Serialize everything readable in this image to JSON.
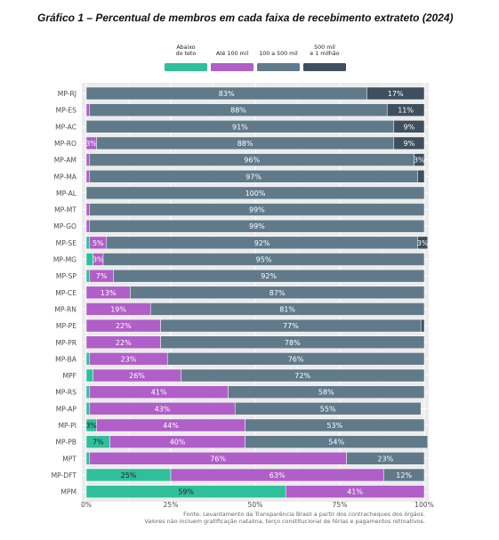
{
  "title": "Gráfico 1 – Percentual de membros em cada faixa de recebimento extrateto (2024)",
  "footnote": {
    "line1": "Fonte: Levantamento da Transparência Brasil a partir dos contracheques dos órgãos.",
    "line2": "Valores não incluem gratificação natalina, terço constitucional de férias e pagamentos retroativos."
  },
  "colors": {
    "Abaixo do teto": "#2fbf9b",
    "Até 100 mil": "#b05ec8",
    "100 a 500 mil": "#607a8a",
    "500 mil e 1 milhão": "#3f4f5e",
    "panel_background": "#ebebeb",
    "grid": "#ffffff"
  },
  "chart_data": {
    "type": "bar",
    "orientation": "horizontal",
    "stacked": true,
    "legend_position": "top",
    "xlim": [
      0,
      100
    ],
    "x_ticks": [
      "0%",
      "25%",
      "50%",
      "75%",
      "100%"
    ],
    "legend": [
      {
        "key": "Abaixo do teto",
        "lines": [
          "Abaixo",
          "do teto"
        ]
      },
      {
        "key": "Até 100 mil",
        "lines": [
          "Até 100 mil"
        ]
      },
      {
        "key": "100 a 500 mil",
        "lines": [
          "100 a 500 mil"
        ]
      },
      {
        "key": "500 mil e 1 milhão",
        "lines": [
          "500 mil",
          "e 1 milhão"
        ]
      }
    ],
    "categories": [
      "MP-RJ",
      "MP-ES",
      "MP-AC",
      "MP-RO",
      "MP-AM",
      "MP-MA",
      "MP-AL",
      "MP-MT",
      "MP-GO",
      "MP-SE",
      "MP-MG",
      "MP-SP",
      "MP-CE",
      "MP-RN",
      "MP-PE",
      "MP-PR",
      "MP-BA",
      "MPF",
      "MP-RS",
      "MP-AP",
      "MP-PI",
      "MP-PB",
      "MPT",
      "MP-DFT",
      "MPM"
    ],
    "series": [
      {
        "name": "Abaixo do teto",
        "values": [
          0,
          0,
          0,
          0,
          0,
          0,
          0,
          0,
          0,
          1,
          2,
          1,
          0,
          0,
          0,
          0,
          1,
          2,
          1,
          1,
          3,
          7,
          1,
          25,
          59
        ],
        "labels": [
          "",
          "",
          "",
          "",
          "",
          "",
          "",
          "",
          "",
          "",
          "",
          "",
          "",
          "",
          "",
          "",
          "",
          "",
          "",
          "",
          "3%",
          "7%",
          "",
          "25%",
          "59%"
        ]
      },
      {
        "name": "Até 100 mil",
        "values": [
          0,
          1,
          0,
          3,
          1,
          1,
          0,
          1,
          1,
          5,
          3,
          7,
          13,
          19,
          22,
          22,
          23,
          26,
          41,
          43,
          44,
          40,
          76,
          63,
          41
        ],
        "labels": [
          "",
          "",
          "",
          "3%",
          "",
          "",
          "",
          "",
          "",
          "5%",
          "3%",
          "7%",
          "13%",
          "19%",
          "22%",
          "22%",
          "23%",
          "26%",
          "41%",
          "43%",
          "44%",
          "40%",
          "76%",
          "63%",
          "41%"
        ]
      },
      {
        "name": "100 a 500 mil",
        "values": [
          83,
          88,
          91,
          88,
          96,
          97,
          100,
          99,
          99,
          92,
          95,
          92,
          87,
          81,
          77,
          78,
          76,
          72,
          58,
          55,
          53,
          54,
          23,
          12,
          0
        ],
        "labels": [
          "83%",
          "88%",
          "91%",
          "88%",
          "96%",
          "97%",
          "100%",
          "99%",
          "99%",
          "92%",
          "95%",
          "92%",
          "87%",
          "81%",
          "77%",
          "78%",
          "76%",
          "72%",
          "58%",
          "55%",
          "53%",
          "54%",
          "23%",
          "12%",
          ""
        ]
      },
      {
        "name": "500 mil e 1 milhão",
        "values": [
          17,
          11,
          9,
          9,
          3,
          2,
          0,
          0,
          0,
          3,
          0,
          0,
          0,
          0,
          1,
          0,
          0,
          0,
          0,
          0,
          0,
          0,
          0,
          0,
          0
        ],
        "labels": [
          "17%",
          "11%",
          "9%",
          "9%",
          "3%",
          "",
          "",
          "",
          "",
          "3%",
          "",
          "",
          "",
          "",
          "",
          "",
          "",
          "",
          "",
          "",
          "",
          "",
          "",
          "",
          ""
        ]
      }
    ]
  }
}
